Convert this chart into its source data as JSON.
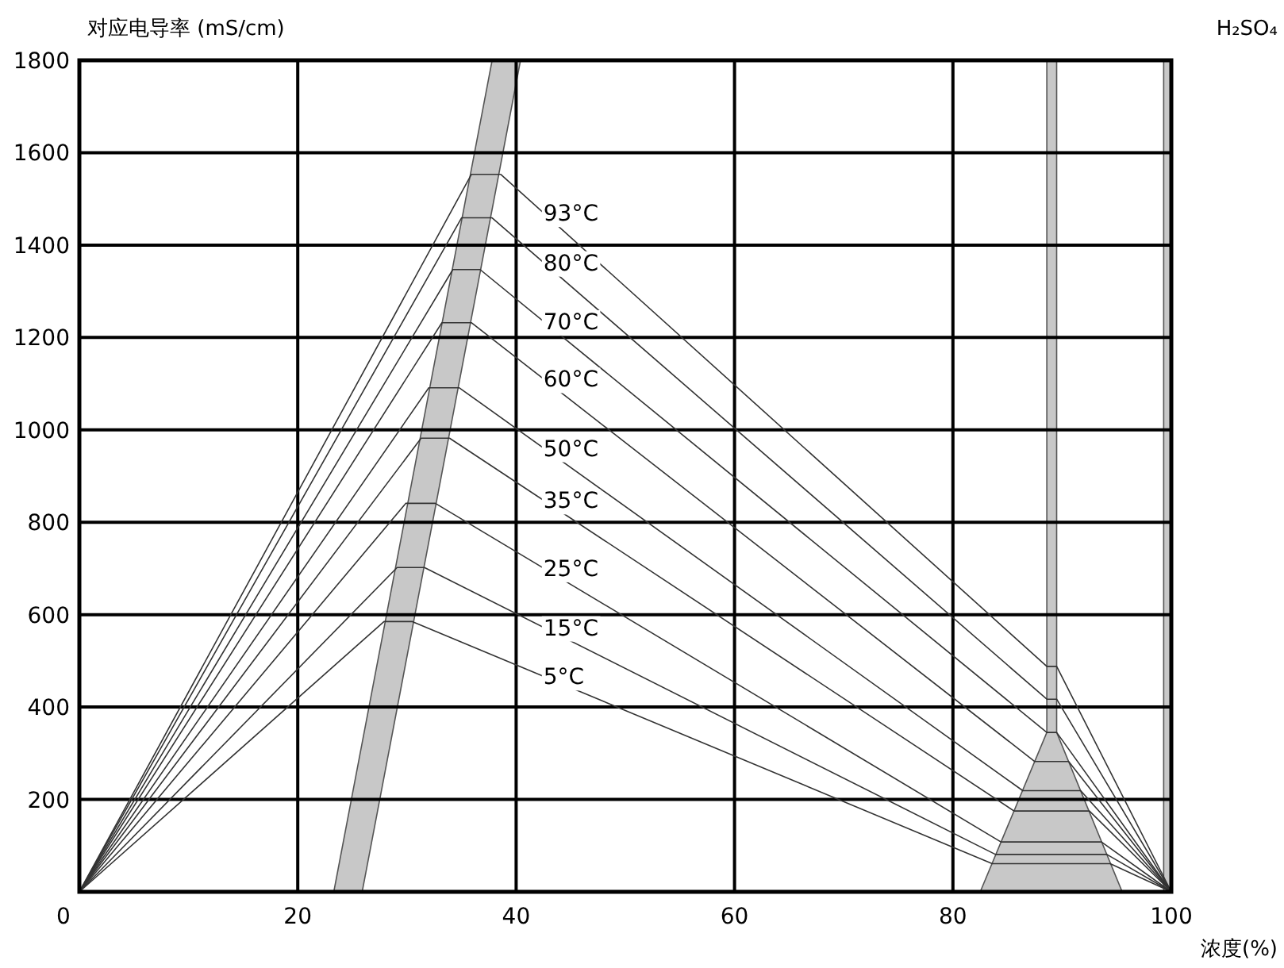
{
  "chart_data": {
    "type": "line",
    "title": "H₂SO₄",
    "xlabel": "浓度(%)",
    "ylabel": "对应电导率 (mS/cm)",
    "xlim": [
      0,
      100
    ],
    "ylim": [
      0,
      1800
    ],
    "xticks": [
      0,
      20,
      40,
      60,
      80,
      100
    ],
    "yticks": [
      {
        "value": 0,
        "label": null
      },
      200,
      400,
      600,
      800,
      1000,
      1200,
      1400,
      1600,
      1800
    ],
    "grid": true,
    "marker": "none",
    "line_style": "solid",
    "bands": [
      {
        "axis": "x",
        "from": 99.3,
        "to": 100,
        "color": "#c8c8c8"
      }
    ],
    "series": [
      {
        "type": "area",
        "color": "#c8c8c8",
        "x": [
          23.3,
          37.8,
          40.4,
          25.9
        ],
        "values": [
          0,
          1800,
          1800,
          0
        ]
      },
      {
        "type": "area",
        "color": "#c8c8c8",
        "x": [
          82.5,
          88.6,
          88.6,
          89.5,
          89.5,
          95.5
        ],
        "values": [
          0,
          345,
          1800,
          1800,
          345,
          0
        ]
      },
      {
        "name": "93°C",
        "color": "#333333",
        "x": [
          0,
          35.9,
          38.6,
          88.6,
          89.5,
          100
        ],
        "values": [
          0,
          1553,
          1553,
          488,
          488,
          0
        ]
      },
      {
        "name": "80°C",
        "color": "#333333",
        "x": [
          0,
          35.0,
          37.8,
          88.6,
          89.5,
          100
        ],
        "values": [
          0,
          1459,
          1459,
          417,
          417,
          0
        ]
      },
      {
        "name": "70°C",
        "color": "#333333",
        "x": [
          0,
          34.2,
          36.7,
          88.6,
          89.5,
          100
        ],
        "values": [
          0,
          1347,
          1347,
          345,
          345,
          0
        ]
      },
      {
        "name": "60°C",
        "color": "#333333",
        "x": [
          0,
          33.2,
          35.9,
          87.5,
          90.6,
          100
        ],
        "values": [
          0,
          1232,
          1232,
          282,
          282,
          0
        ]
      },
      {
        "name": "50°C",
        "color": "#333333",
        "x": [
          0,
          32.0,
          34.8,
          86.4,
          91.7,
          100
        ],
        "values": [
          0,
          1091,
          1091,
          219,
          219,
          0
        ]
      },
      {
        "name": "35°C",
        "color": "#333333",
        "x": [
          0,
          31.3,
          33.9,
          85.6,
          92.5,
          100
        ],
        "values": [
          0,
          982,
          982,
          175,
          175,
          0
        ]
      },
      {
        "name": "25°C",
        "color": "#333333",
        "x": [
          0,
          29.9,
          32.6,
          84.4,
          93.6,
          100
        ],
        "values": [
          0,
          841,
          841,
          108,
          108,
          0
        ]
      },
      {
        "name": "15°C",
        "color": "#333333",
        "x": [
          0,
          29.1,
          31.6,
          83.9,
          94.1,
          100
        ],
        "values": [
          0,
          702,
          702,
          81,
          81,
          0
        ]
      },
      {
        "name": "5°C",
        "color": "#333333",
        "x": [
          0,
          27.9,
          30.5,
          83.6,
          94.4,
          100
        ],
        "values": [
          0,
          585,
          585,
          61,
          61,
          0
        ]
      }
    ]
  }
}
